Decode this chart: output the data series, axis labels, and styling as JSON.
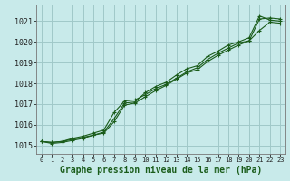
{
  "title": "Graphe pression niveau de la mer (hPa)",
  "background_color": "#c8eaea",
  "grid_color": "#a0c8c8",
  "line_color": "#1a5c1a",
  "marker_color": "#1a5c1a",
  "xlim": [
    -0.5,
    23.5
  ],
  "ylim": [
    1014.6,
    1021.8
  ],
  "yticks": [
    1015,
    1016,
    1017,
    1018,
    1019,
    1020,
    1021
  ],
  "xticks": [
    0,
    1,
    2,
    3,
    4,
    5,
    6,
    7,
    8,
    9,
    10,
    11,
    12,
    13,
    14,
    15,
    16,
    17,
    18,
    19,
    20,
    21,
    22,
    23
  ],
  "series": [
    [
      1015.2,
      1015.15,
      1015.2,
      1015.3,
      1015.4,
      1015.5,
      1015.65,
      1016.3,
      1017.05,
      1017.1,
      1017.55,
      1017.85,
      1018.05,
      1018.4,
      1018.7,
      1018.85,
      1019.3,
      1019.55,
      1019.85,
      1020.0,
      1020.2,
      1021.25,
      1021.05,
      1021.0
    ],
    [
      1015.2,
      1015.15,
      1015.2,
      1015.35,
      1015.45,
      1015.6,
      1015.75,
      1016.6,
      1017.15,
      1017.2,
      1017.45,
      1017.75,
      1017.95,
      1018.25,
      1018.55,
      1018.75,
      1019.15,
      1019.45,
      1019.7,
      1019.95,
      1020.05,
      1020.55,
      1020.95,
      1020.9
    ],
    [
      1015.2,
      1015.1,
      1015.15,
      1015.25,
      1015.35,
      1015.5,
      1015.6,
      1016.15,
      1016.95,
      1017.05,
      1017.35,
      1017.65,
      1017.9,
      1018.2,
      1018.5,
      1018.65,
      1019.05,
      1019.35,
      1019.6,
      1019.85,
      1020.05,
      1021.1,
      1021.15,
      1021.1
    ]
  ]
}
